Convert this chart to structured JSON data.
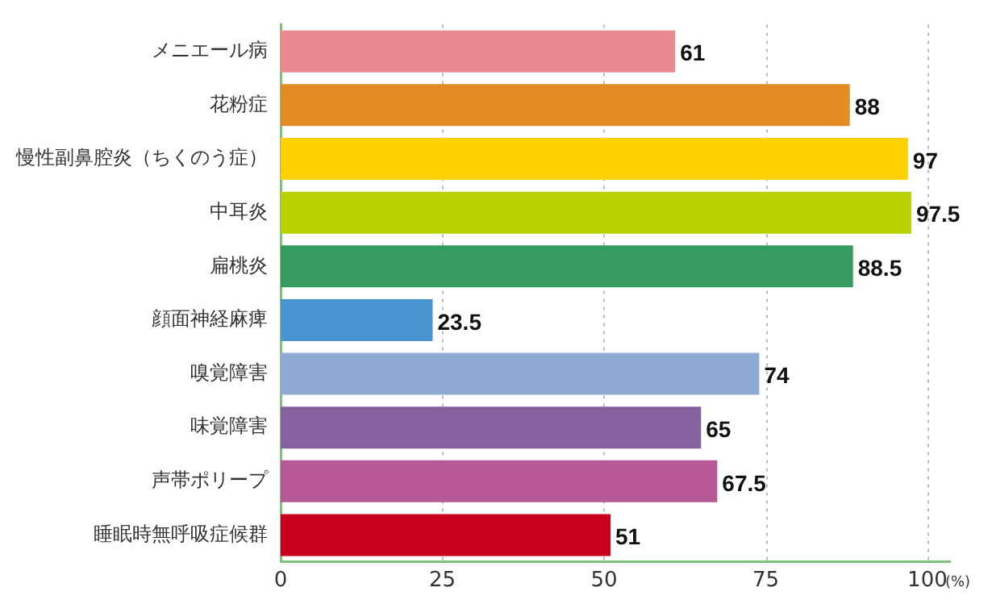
{
  "chart_data": {
    "type": "bar",
    "orientation": "horizontal",
    "categories": [
      "メニエール病",
      "花粉症",
      "慢性副鼻腔炎（ちくのう症）",
      "中耳炎",
      "扁桃炎",
      "顔面神経麻痺",
      "嗅覚障害",
      "味覚障害",
      "声帯ポリープ",
      "睡眠時無呼吸症候群"
    ],
    "values": [
      61,
      88,
      97,
      97.5,
      88.5,
      23.5,
      74,
      65,
      67.5,
      51
    ],
    "colors": [
      "#ea8a90",
      "#e38b23",
      "#fdd100",
      "#b8d200",
      "#359b61",
      "#4a94d0",
      "#8faad3",
      "#83629e",
      "#b65893",
      "#c8001e"
    ],
    "xlim": [
      0,
      103.5
    ],
    "xticks": [
      0,
      25,
      50,
      75,
      100
    ],
    "xlabel": "(%)",
    "grid": "x",
    "data_labels": true,
    "legend": false
  }
}
